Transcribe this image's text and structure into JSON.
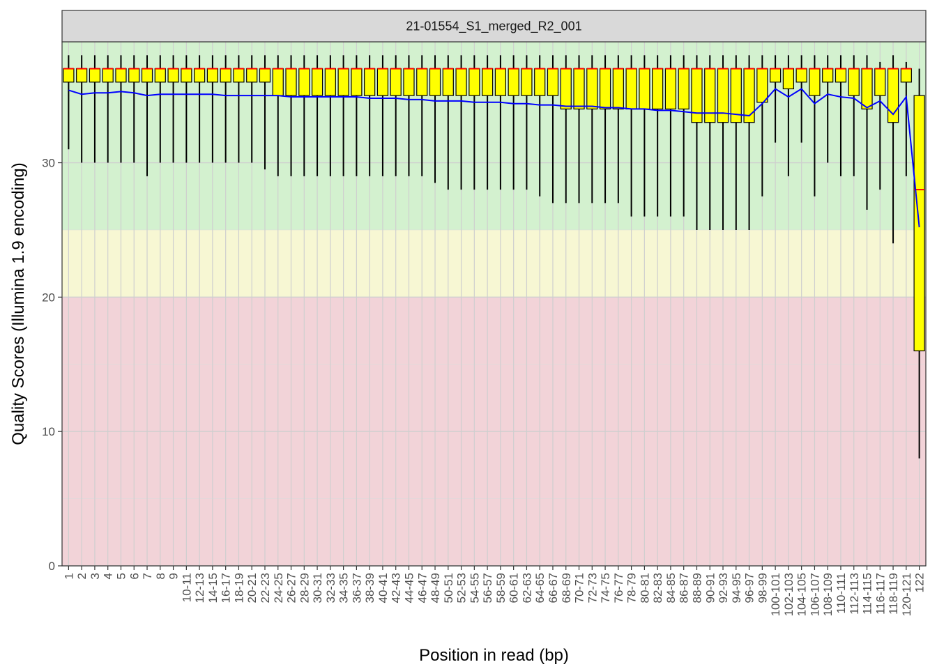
{
  "chart_data": {
    "type": "boxplot",
    "facet_title": "21-01554_S1_merged_R2_001",
    "xlabel": "Position in read (bp)",
    "ylabel": "Quality Scores (Illumina 1.9 encoding)",
    "ylim": [
      0,
      39
    ],
    "yticks": [
      0,
      10,
      20,
      30
    ],
    "zones": [
      {
        "from": 0,
        "to": 20,
        "color": "#f2d3d8"
      },
      {
        "from": 20,
        "to": 25,
        "color": "#f7f7d3"
      },
      {
        "from": 25,
        "to": 39,
        "color": "#d3f1cf"
      }
    ],
    "box_fill": "#ffff00",
    "median_color": "#ff0000",
    "mean_color": "#0000ff",
    "categories": [
      "1",
      "2",
      "3",
      "4",
      "5",
      "6",
      "7",
      "8",
      "9",
      "10-11",
      "12-13",
      "14-15",
      "16-17",
      "18-19",
      "20-21",
      "22-23",
      "24-25",
      "26-27",
      "28-29",
      "30-31",
      "32-33",
      "34-35",
      "36-37",
      "38-39",
      "40-41",
      "42-43",
      "44-45",
      "46-47",
      "48-49",
      "50-51",
      "52-53",
      "54-55",
      "56-57",
      "58-59",
      "60-61",
      "62-63",
      "64-65",
      "66-67",
      "68-69",
      "70-71",
      "72-73",
      "74-75",
      "76-77",
      "78-79",
      "80-81",
      "82-83",
      "84-85",
      "86-87",
      "88-89",
      "90-91",
      "92-93",
      "94-95",
      "96-97",
      "98-99",
      "100-101",
      "102-103",
      "104-105",
      "106-107",
      "108-109",
      "110-111",
      "112-113",
      "114-115",
      "116-117",
      "118-119",
      "120-121",
      "122"
    ],
    "q1": [
      36,
      36,
      36,
      36,
      36,
      36,
      36,
      36,
      36,
      36,
      36,
      36,
      36,
      36,
      36,
      36,
      35,
      35,
      35,
      35,
      35,
      35,
      35,
      35,
      35,
      35,
      35,
      35,
      35,
      35,
      35,
      35,
      35,
      35,
      35,
      35,
      35,
      35,
      34,
      34,
      34,
      34,
      34,
      34,
      34,
      34,
      34,
      34,
      33,
      33,
      33,
      33,
      33,
      34.5,
      36,
      35.5,
      36,
      35,
      36,
      36,
      35,
      34,
      35,
      33,
      36,
      16
    ],
    "median": [
      37,
      37,
      37,
      37,
      37,
      37,
      37,
      37,
      37,
      37,
      37,
      37,
      37,
      37,
      37,
      37,
      37,
      37,
      37,
      37,
      37,
      37,
      37,
      37,
      37,
      37,
      37,
      37,
      37,
      37,
      37,
      37,
      37,
      37,
      37,
      37,
      37,
      37,
      37,
      37,
      37,
      37,
      37,
      37,
      37,
      37,
      37,
      37,
      37,
      37,
      37,
      37,
      37,
      37,
      37,
      37,
      37,
      37,
      37,
      37,
      37,
      37,
      37,
      37,
      37,
      28
    ],
    "q3": [
      37,
      37,
      37,
      37,
      37,
      37,
      37,
      37,
      37,
      37,
      37,
      37,
      37,
      37,
      37,
      37,
      37,
      37,
      37,
      37,
      37,
      37,
      37,
      37,
      37,
      37,
      37,
      37,
      37,
      37,
      37,
      37,
      37,
      37,
      37,
      37,
      37,
      37,
      37,
      37,
      37,
      37,
      37,
      37,
      37,
      37,
      37,
      37,
      37,
      37,
      37,
      37,
      37,
      37,
      37,
      37,
      37,
      37,
      37,
      37,
      37,
      37,
      37,
      37,
      37,
      35
    ],
    "whisker_low": [
      31,
      30,
      30,
      30,
      30,
      30,
      29,
      30,
      30,
      30,
      30,
      30,
      30,
      30,
      30,
      29.5,
      29,
      29,
      29,
      29,
      29,
      29,
      29,
      29,
      29,
      29,
      29,
      29,
      28.5,
      28,
      28,
      28,
      28,
      28,
      28,
      28,
      27.5,
      27,
      27,
      27,
      27,
      27,
      27,
      26,
      26,
      26,
      26,
      26,
      25,
      25,
      25,
      25,
      25,
      27.5,
      31.5,
      29,
      31.5,
      27.5,
      30,
      29,
      29,
      26.5,
      28,
      24,
      29,
      8
    ],
    "whisker_high": [
      38,
      38,
      38,
      38,
      38,
      38,
      38,
      38,
      38,
      38,
      38,
      38,
      38,
      38,
      38,
      38,
      38,
      38,
      38,
      38,
      38,
      38,
      38,
      38,
      38,
      38,
      38,
      38,
      38,
      38,
      38,
      38,
      38,
      38,
      38,
      38,
      38,
      38,
      38,
      38,
      38,
      38,
      38,
      38,
      38,
      38,
      38,
      38,
      38,
      38,
      38,
      38,
      38,
      38,
      38,
      38,
      38,
      38,
      38,
      38,
      38,
      38,
      37.5,
      38,
      37.5,
      37
    ],
    "mean": [
      35.4,
      35.1,
      35.2,
      35.2,
      35.3,
      35.2,
      35.0,
      35.1,
      35.1,
      35.1,
      35.1,
      35.1,
      35.0,
      35.0,
      35.0,
      35.0,
      35.0,
      34.9,
      34.9,
      34.9,
      34.9,
      34.9,
      34.9,
      34.8,
      34.8,
      34.8,
      34.7,
      34.7,
      34.6,
      34.6,
      34.6,
      34.5,
      34.5,
      34.5,
      34.4,
      34.4,
      34.3,
      34.3,
      34.2,
      34.2,
      34.2,
      34.1,
      34.1,
      34.0,
      34.0,
      33.9,
      33.9,
      33.8,
      33.7,
      33.7,
      33.7,
      33.6,
      33.5,
      34.4,
      35.5,
      34.9,
      35.5,
      34.4,
      35.1,
      34.9,
      34.8,
      34.1,
      34.6,
      33.6,
      34.9,
      25.2
    ]
  }
}
